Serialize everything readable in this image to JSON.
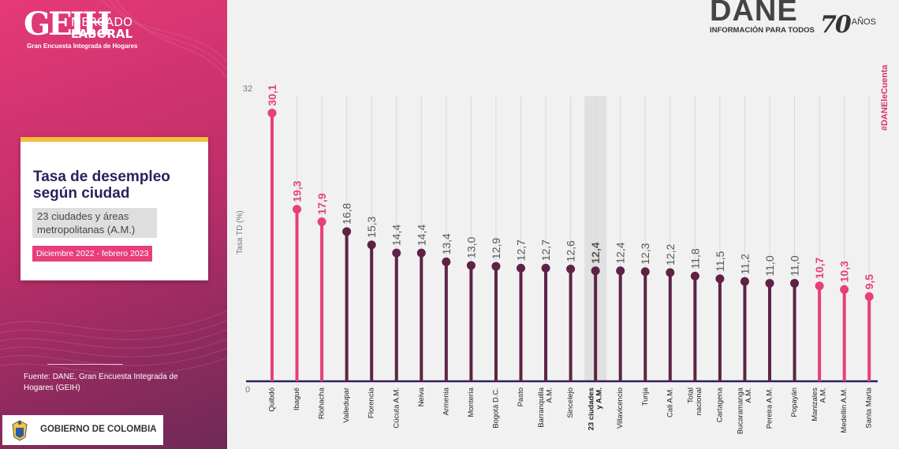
{
  "branding": {
    "geih": "GEIH",
    "mercado_line1": "MERCADO",
    "mercado_line2": "LABORAL",
    "geih_subtitle": "Gran Encuesta Integrada de Hogares",
    "dane": "DANE",
    "dane_tagline": "INFORMACIÓN PARA TODOS",
    "anniversary_number": "70",
    "anniversary_word": "AÑOS",
    "hashtag": "#DANEleCuenta",
    "government": "GOBIERNO DE COLOMBIA"
  },
  "card": {
    "title": "Tasa de desempleo según ciudad",
    "subtitle": "23 ciudades y áreas metropolitanas (A.M.)",
    "period": "Diciembre 2022 - febrero 2023"
  },
  "source": "Fuente: DANE, Gran Encuesta Integrada de Hogares (GEIH)",
  "colors": {
    "pink": "#e63f7c",
    "maroon": "#5e2245",
    "axis": "#2d1f5c",
    "highlight_band": "#dedede"
  },
  "chart_data": {
    "type": "bar",
    "ylabel": "Tasa TD (%)",
    "ylim": [
      0,
      32
    ],
    "yticks": [
      "0",
      "32"
    ],
    "grid": true,
    "categories": [
      {
        "label": "Quibdó",
        "value": 30.1,
        "display": "30,1",
        "color": "pink",
        "bold": true
      },
      {
        "label": "Ibagué",
        "value": 19.3,
        "display": "19,3",
        "color": "pink",
        "bold": true
      },
      {
        "label": "Riohacha",
        "value": 17.9,
        "display": "17,9",
        "color": "pink",
        "bold": true
      },
      {
        "label": "Valledupar",
        "value": 16.8,
        "display": "16,8",
        "color": "maroon"
      },
      {
        "label": "Florencia",
        "value": 15.3,
        "display": "15,3",
        "color": "maroon"
      },
      {
        "label": "Cúcuta A.M.",
        "value": 14.4,
        "display": "14,4",
        "color": "maroon"
      },
      {
        "label": "Neiva",
        "value": 14.4,
        "display": "14,4",
        "color": "maroon"
      },
      {
        "label": "Armenia",
        "value": 13.4,
        "display": "13,4",
        "color": "maroon"
      },
      {
        "label": "Montería",
        "value": 13.0,
        "display": "13,0",
        "color": "maroon"
      },
      {
        "label": "Bogotá D.C.",
        "value": 12.9,
        "display": "12,9",
        "color": "maroon"
      },
      {
        "label": "Pasto",
        "value": 12.7,
        "display": "12,7",
        "color": "maroon"
      },
      {
        "label": "Barranquilla A.M.",
        "line1": "Barranquilla",
        "line2": "A.M.",
        "value": 12.7,
        "display": "12,7",
        "color": "maroon"
      },
      {
        "label": "Sincelejo",
        "value": 12.6,
        "display": "12,6",
        "color": "maroon"
      },
      {
        "label": "23 ciudades y A.M.",
        "line1": "23 ciudades",
        "line2": "y A.M.",
        "value": 12.4,
        "display": "12,4",
        "color": "maroon",
        "bold": true,
        "highlight": true
      },
      {
        "label": "Villavicencio",
        "value": 12.4,
        "display": "12,4",
        "color": "maroon"
      },
      {
        "label": "Tunja",
        "value": 12.3,
        "display": "12,3",
        "color": "maroon"
      },
      {
        "label": "Cali A.M.",
        "value": 12.2,
        "display": "12,2",
        "color": "maroon"
      },
      {
        "label": "Total nacional",
        "line1": "Total",
        "line2": "nacional",
        "value": 11.8,
        "display": "11,8",
        "color": "maroon"
      },
      {
        "label": "Cartagena",
        "value": 11.5,
        "display": "11,5",
        "color": "maroon"
      },
      {
        "label": "Bucaramanga A.M.",
        "line1": "Bucaramanga",
        "line2": "A.M.",
        "value": 11.2,
        "display": "11,2",
        "color": "maroon"
      },
      {
        "label": "Pereira A.M.",
        "value": 11.0,
        "display": "11,0",
        "color": "maroon"
      },
      {
        "label": "Popayán",
        "value": 11.0,
        "display": "11,0",
        "color": "maroon"
      },
      {
        "label": "Manizales A.M.",
        "line1": "Manizales",
        "line2": "A.M.",
        "value": 10.7,
        "display": "10,7",
        "color": "pink",
        "bold": true
      },
      {
        "label": "Medellín A.M.",
        "value": 10.3,
        "display": "10,3",
        "color": "pink",
        "bold": true
      },
      {
        "label": "Santa Marta",
        "value": 9.5,
        "display": "9,5",
        "color": "pink",
        "bold": true
      }
    ]
  }
}
